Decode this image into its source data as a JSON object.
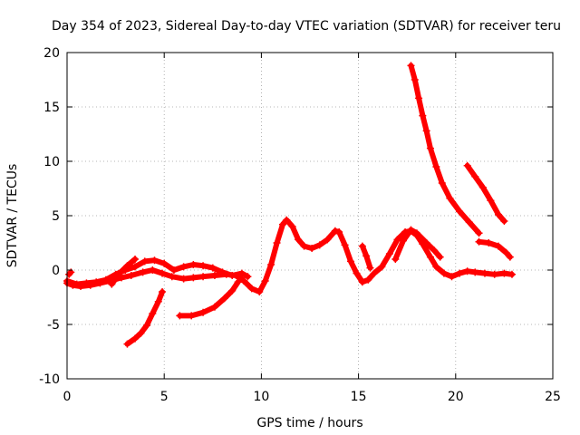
{
  "chart_data": {
    "type": "scatter",
    "title": "Day 354 of 2023, Sidereal Day-to-day VTEC variation (SDTVAR) for receiver teru",
    "xlabel": "GPS time / hours",
    "ylabel": "SDTVAR / TECUs",
    "xlim": [
      0,
      25
    ],
    "ylim": [
      -10,
      20
    ],
    "xticks": [
      0,
      5,
      10,
      15,
      20,
      25
    ],
    "yticks": [
      -10,
      -5,
      0,
      5,
      10,
      15,
      20
    ],
    "xtick_labels": [
      "0",
      "5",
      "10",
      "15",
      "20",
      "25"
    ],
    "ytick_labels": [
      "-10",
      "-5",
      "0",
      "5",
      "10",
      "15",
      "20"
    ],
    "grid": true,
    "marker_color": "#ff0000",
    "series": [
      {
        "name": "main",
        "points": [
          [
            0.0,
            -1.2
          ],
          [
            0.3,
            -1.4
          ],
          [
            0.7,
            -1.5
          ],
          [
            1.2,
            -1.4
          ],
          [
            1.7,
            -1.2
          ],
          [
            2.2,
            -1.0
          ],
          [
            2.8,
            -0.7
          ],
          [
            3.3,
            -0.5
          ],
          [
            3.9,
            -0.2
          ],
          [
            4.4,
            0.0
          ],
          [
            4.9,
            -0.3
          ],
          [
            5.4,
            -0.6
          ],
          [
            6.0,
            -0.8
          ],
          [
            6.5,
            -0.7
          ],
          [
            7.0,
            -0.6
          ],
          [
            7.6,
            -0.5
          ],
          [
            8.2,
            -0.4
          ],
          [
            8.7,
            -0.5
          ],
          [
            9.1,
            -1.0
          ],
          [
            9.5,
            -1.7
          ],
          [
            9.9,
            -2.0
          ],
          [
            10.2,
            -1.0
          ],
          [
            10.5,
            0.5
          ],
          [
            10.8,
            2.5
          ],
          [
            11.1,
            4.2
          ],
          [
            11.3,
            4.6
          ],
          [
            11.6,
            4.0
          ],
          [
            11.9,
            2.8
          ],
          [
            12.2,
            2.2
          ],
          [
            12.6,
            2.0
          ],
          [
            13.0,
            2.3
          ],
          [
            13.4,
            2.8
          ],
          [
            13.8,
            3.6
          ],
          [
            14.0,
            3.5
          ],
          [
            14.3,
            2.3
          ],
          [
            14.6,
            0.8
          ],
          [
            14.9,
            -0.3
          ],
          [
            15.2,
            -1.1
          ],
          [
            15.5,
            -0.9
          ],
          [
            15.8,
            -0.3
          ],
          [
            16.2,
            0.3
          ],
          [
            16.6,
            1.5
          ],
          [
            17.0,
            2.8
          ],
          [
            17.4,
            3.5
          ],
          [
            17.7,
            3.6
          ],
          [
            18.0,
            3.2
          ],
          [
            18.3,
            2.4
          ],
          [
            18.7,
            1.2
          ],
          [
            19.0,
            0.3
          ],
          [
            19.4,
            -0.3
          ],
          [
            19.8,
            -0.6
          ],
          [
            20.2,
            -0.3
          ],
          [
            20.6,
            -0.1
          ],
          [
            21.0,
            -0.2
          ],
          [
            21.5,
            -0.3
          ],
          [
            22.0,
            -0.4
          ],
          [
            22.5,
            -0.3
          ],
          [
            22.9,
            -0.4
          ]
        ]
      },
      {
        "name": "upper-branch",
        "points": [
          [
            0.0,
            -1.0
          ],
          [
            0.5,
            -1.3
          ],
          [
            1.0,
            -1.2
          ],
          [
            1.5,
            -1.1
          ],
          [
            2.0,
            -0.9
          ],
          [
            2.5,
            -0.4
          ],
          [
            3.0,
            0.0
          ],
          [
            3.5,
            0.3
          ],
          [
            4.0,
            0.8
          ],
          [
            4.5,
            0.9
          ],
          [
            5.0,
            0.6
          ],
          [
            5.5,
            0.0
          ],
          [
            6.0,
            0.3
          ],
          [
            6.5,
            0.5
          ],
          [
            7.0,
            0.4
          ],
          [
            7.5,
            0.2
          ],
          [
            8.0,
            -0.2
          ],
          [
            8.5,
            -0.5
          ],
          [
            9.0,
            -0.3
          ],
          [
            9.3,
            -0.6
          ]
        ]
      },
      {
        "name": "early-spike",
        "points": [
          [
            2.3,
            -1.3
          ],
          [
            2.7,
            -0.3
          ],
          [
            3.1,
            0.4
          ],
          [
            3.5,
            1.0
          ]
        ]
      },
      {
        "name": "small-blob",
        "points": [
          [
            0.1,
            -0.4
          ],
          [
            0.2,
            -0.2
          ]
        ]
      },
      {
        "name": "lower-branch-1",
        "points": [
          [
            3.1,
            -6.8
          ],
          [
            3.5,
            -6.3
          ],
          [
            3.8,
            -5.8
          ],
          [
            4.1,
            -5.1
          ],
          [
            4.4,
            -4.0
          ],
          [
            4.7,
            -2.9
          ],
          [
            4.9,
            -2.0
          ]
        ]
      },
      {
        "name": "lower-branch-2",
        "points": [
          [
            5.8,
            -4.2
          ],
          [
            6.4,
            -4.2
          ],
          [
            7.0,
            -3.9
          ],
          [
            7.6,
            -3.4
          ],
          [
            8.1,
            -2.6
          ],
          [
            8.5,
            -1.9
          ],
          [
            8.8,
            -1.1
          ]
        ]
      },
      {
        "name": "rise-late",
        "points": [
          [
            16.9,
            1.0
          ],
          [
            17.3,
            2.7
          ],
          [
            17.7,
            3.7
          ],
          [
            18.0,
            3.4
          ],
          [
            18.5,
            2.5
          ],
          [
            18.9,
            1.8
          ],
          [
            19.2,
            1.2
          ]
        ]
      },
      {
        "name": "spike-15",
        "points": [
          [
            15.2,
            2.2
          ],
          [
            15.4,
            1.3
          ],
          [
            15.6,
            0.2
          ]
        ]
      },
      {
        "name": "falling-curve-1",
        "points": [
          [
            17.7,
            18.8
          ],
          [
            17.9,
            17.5
          ],
          [
            18.1,
            15.8
          ],
          [
            18.3,
            14.2
          ],
          [
            18.5,
            12.8
          ],
          [
            18.7,
            11.2
          ],
          [
            19.0,
            9.5
          ],
          [
            19.3,
            8.0
          ],
          [
            19.7,
            6.6
          ],
          [
            20.2,
            5.4
          ],
          [
            20.7,
            4.4
          ],
          [
            21.2,
            3.4
          ]
        ]
      },
      {
        "name": "falling-curve-2",
        "points": [
          [
            20.6,
            9.6
          ],
          [
            21.0,
            8.6
          ],
          [
            21.4,
            7.6
          ],
          [
            21.8,
            6.4
          ],
          [
            22.2,
            5.1
          ],
          [
            22.5,
            4.5
          ]
        ]
      },
      {
        "name": "tail-curve",
        "points": [
          [
            21.2,
            2.6
          ],
          [
            21.7,
            2.5
          ],
          [
            22.2,
            2.2
          ],
          [
            22.6,
            1.6
          ],
          [
            22.8,
            1.2
          ]
        ]
      }
    ]
  }
}
